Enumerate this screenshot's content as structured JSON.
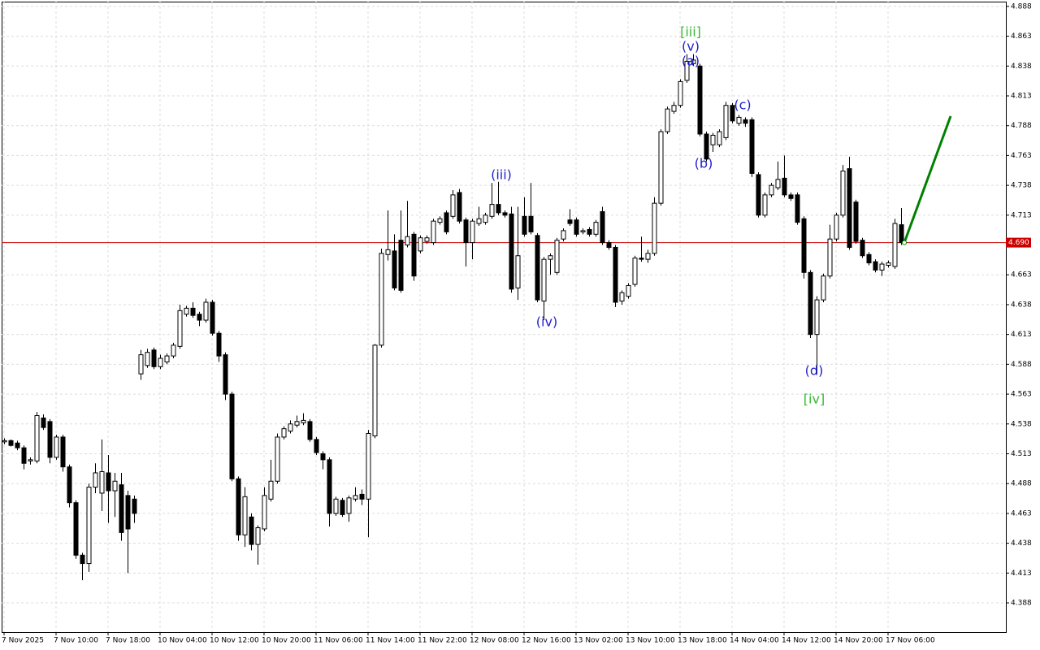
{
  "chart_data": {
    "type": "candlestick",
    "categories": [
      "7 Nov 2025",
      null,
      null,
      null,
      null,
      null,
      null,
      null,
      "7 Nov 10:00",
      null,
      null,
      null,
      null,
      null,
      null,
      null,
      "7 Nov 18:00",
      null,
      null,
      null,
      null,
      null,
      null,
      null,
      "10 Nov 04:00",
      null,
      null,
      null,
      null,
      null,
      null,
      null,
      "10 Nov 12:00",
      null,
      null,
      null,
      null,
      null,
      null,
      null,
      "10 Nov 20:00",
      null,
      null,
      null,
      null,
      null,
      null,
      null,
      "11 Nov 06:00",
      null,
      null,
      null,
      null,
      null,
      null,
      null,
      "11 Nov 14:00",
      null,
      null,
      null,
      null,
      null,
      null,
      null,
      "11 Nov 22:00",
      null,
      null,
      null,
      null,
      null,
      null,
      null,
      "12 Nov 08:00",
      null,
      null,
      null,
      null,
      null,
      null,
      null,
      "12 Nov 16:00",
      null,
      null,
      null,
      null,
      null,
      null,
      null,
      "13 Nov 02:00",
      null,
      null,
      null,
      null,
      null,
      null,
      null,
      "13 Nov 10:00",
      null,
      null,
      null,
      null,
      null,
      null,
      null,
      "13 Nov 18:00",
      null,
      null,
      null,
      null,
      null,
      null,
      null,
      "14 Nov 04:00",
      null,
      null,
      null,
      null,
      null,
      null,
      null,
      "14 Nov 12:00",
      null,
      null,
      null,
      null,
      null,
      null,
      null,
      "14 Nov 20:00",
      null,
      null,
      null,
      null,
      null,
      null,
      null,
      "17 Nov 06:00",
      null,
      null
    ],
    "open": [
      4.523,
      4.524,
      4.522,
      4.518,
      4.507,
      4.507,
      4.543,
      4.54,
      4.51,
      4.527,
      4.502,
      4.472,
      4.428,
      4.421,
      4.485,
      4.48,
      4.497,
      4.482,
      4.487,
      4.478,
      4.475,
      4.58,
      4.587,
      4.6,
      4.586,
      4.59,
      4.595,
      4.603,
      4.63,
      4.635,
      4.63,
      4.625,
      4.64,
      4.614,
      4.596,
      4.563,
      4.492,
      4.445,
      4.46,
      4.437,
      4.45,
      4.475,
      4.49,
      4.527,
      4.532,
      4.537,
      4.539,
      4.54,
      4.525,
      4.513,
      4.508,
      4.463,
      4.474,
      4.463,
      4.475,
      4.479,
      4.475,
      4.528,
      4.604,
      4.68,
      4.683,
      4.692,
      4.688,
      4.697,
      4.683,
      4.691,
      4.69,
      4.707,
      4.715,
      4.712,
      4.732,
      4.709,
      4.69,
      4.706,
      4.707,
      4.712,
      4.722,
      4.715,
      4.714,
      4.652,
      4.712,
      4.712,
      4.696,
      4.641,
      4.676,
      4.665,
      4.693,
      4.709,
      4.709,
      4.699,
      4.701,
      4.697,
      4.716,
      4.69,
      4.686,
      4.641,
      4.645,
      4.655,
      4.677,
      4.676,
      4.681,
      4.723,
      4.783,
      4.8,
      4.805,
      4.826,
      4.84,
      4.838,
      4.781,
      4.772,
      4.772,
      4.778,
      4.805,
      4.79,
      4.793,
      4.793,
      4.747,
      4.713,
      4.73,
      4.736,
      4.744,
      4.73,
      4.73,
      4.71,
      4.665,
      4.613,
      4.642,
      4.662,
      4.693,
      4.713,
      4.752,
      4.724,
      4.692,
      4.68,
      4.674,
      4.667,
      4.671,
      4.67,
      4.705
    ],
    "high": [
      4.526,
      4.525,
      4.524,
      4.52,
      4.51,
      4.548,
      4.546,
      4.542,
      4.529,
      4.529,
      4.504,
      4.474,
      4.43,
      4.488,
      4.505,
      4.525,
      4.512,
      4.497,
      4.497,
      4.482,
      4.478,
      4.6,
      4.601,
      4.602,
      4.596,
      4.597,
      4.606,
      4.638,
      4.637,
      4.64,
      4.632,
      4.643,
      4.642,
      4.616,
      4.598,
      4.565,
      4.494,
      4.485,
      4.463,
      4.453,
      4.485,
      4.508,
      4.53,
      4.536,
      4.541,
      4.545,
      4.547,
      4.542,
      4.527,
      4.515,
      4.51,
      4.477,
      4.476,
      4.478,
      4.485,
      4.483,
      4.533,
      4.605,
      4.685,
      4.717,
      4.697,
      4.717,
      4.725,
      4.699,
      4.696,
      4.696,
      4.71,
      4.712,
      4.717,
      4.734,
      4.735,
      4.711,
      4.71,
      4.72,
      4.715,
      4.74,
      4.741,
      4.717,
      4.72,
      4.72,
      4.728,
      4.74,
      4.698,
      4.678,
      4.681,
      4.694,
      4.702,
      4.718,
      4.711,
      4.702,
      4.703,
      4.709,
      4.72,
      4.692,
      4.688,
      4.65,
      4.656,
      4.679,
      4.695,
      4.684,
      4.728,
      4.785,
      4.804,
      4.808,
      4.827,
      4.848,
      4.848,
      4.84,
      4.783,
      4.782,
      4.785,
      4.808,
      4.807,
      4.797,
      4.795,
      4.795,
      4.749,
      4.732,
      4.74,
      4.758,
      4.763,
      4.732,
      4.732,
      4.712,
      4.667,
      4.645,
      4.664,
      4.705,
      4.715,
      4.755,
      4.762,
      4.726,
      4.694,
      4.682,
      4.676,
      4.674,
      4.675,
      4.71,
      4.719
    ],
    "low": [
      4.521,
      4.519,
      4.516,
      4.5,
      4.504,
      4.505,
      4.533,
      4.505,
      4.508,
      4.498,
      4.468,
      4.425,
      4.407,
      4.414,
      4.48,
      4.465,
      4.455,
      4.46,
      4.44,
      4.413,
      4.455,
      4.575,
      4.585,
      4.584,
      4.584,
      4.588,
      4.593,
      4.601,
      4.628,
      4.627,
      4.62,
      4.623,
      4.612,
      4.59,
      4.558,
      4.49,
      4.44,
      4.435,
      4.432,
      4.42,
      4.448,
      4.473,
      4.488,
      4.525,
      4.53,
      4.535,
      4.537,
      4.523,
      4.512,
      4.5,
      4.452,
      4.461,
      4.46,
      4.456,
      4.473,
      4.47,
      4.443,
      4.526,
      4.602,
      4.675,
      4.65,
      4.648,
      4.686,
      4.658,
      4.681,
      4.689,
      4.688,
      4.705,
      4.697,
      4.71,
      4.706,
      4.67,
      4.676,
      4.704,
      4.705,
      4.71,
      4.713,
      4.711,
      4.648,
      4.642,
      4.695,
      4.697,
      4.64,
      4.625,
      4.663,
      4.663,
      4.691,
      4.704,
      4.695,
      4.697,
      4.695,
      4.695,
      4.688,
      4.684,
      4.636,
      4.638,
      4.643,
      4.653,
      4.674,
      4.673,
      4.679,
      4.721,
      4.781,
      4.798,
      4.803,
      4.824,
      4.838,
      4.779,
      4.758,
      4.766,
      4.77,
      4.776,
      4.79,
      4.788,
      4.787,
      4.745,
      4.711,
      4.711,
      4.728,
      4.734,
      4.728,
      4.725,
      4.705,
      4.66,
      4.61,
      4.58,
      4.64,
      4.66,
      4.691,
      4.711,
      4.684,
      4.689,
      4.677,
      4.671,
      4.665,
      4.662,
      4.669,
      4.668,
      4.688
    ],
    "close": [
      4.524,
      4.52,
      4.518,
      4.505,
      4.508,
      4.545,
      4.535,
      4.51,
      4.527,
      4.502,
      4.472,
      4.428,
      4.421,
      4.485,
      4.497,
      4.498,
      4.482,
      4.49,
      4.447,
      4.45,
      4.463,
      4.596,
      4.598,
      4.586,
      4.593,
      4.595,
      4.604,
      4.633,
      4.635,
      4.629,
      4.625,
      4.64,
      4.614,
      4.595,
      4.563,
      4.492,
      4.445,
      4.477,
      4.437,
      4.451,
      4.478,
      4.49,
      4.527,
      4.534,
      4.538,
      4.54,
      4.541,
      4.525,
      4.514,
      4.508,
      4.463,
      4.475,
      4.462,
      4.476,
      4.478,
      4.475,
      4.53,
      4.604,
      4.681,
      4.684,
      4.652,
      4.65,
      4.695,
      4.662,
      4.694,
      4.694,
      4.708,
      4.71,
      4.699,
      4.73,
      4.708,
      4.69,
      4.708,
      4.71,
      4.713,
      4.722,
      4.715,
      4.713,
      4.651,
      4.679,
      4.697,
      4.699,
      4.642,
      4.676,
      4.679,
      4.692,
      4.7,
      4.706,
      4.697,
      4.7,
      4.697,
      4.707,
      4.69,
      4.686,
      4.64,
      4.648,
      4.654,
      4.677,
      4.676,
      4.681,
      4.723,
      4.783,
      4.802,
      4.805,
      4.825,
      4.842,
      4.843,
      4.781,
      4.76,
      4.78,
      4.783,
      4.805,
      4.792,
      4.795,
      4.79,
      4.748,
      4.713,
      4.73,
      4.738,
      4.743,
      4.73,
      4.727,
      4.707,
      4.665,
      4.613,
      4.642,
      4.662,
      4.693,
      4.713,
      4.75,
      4.686,
      4.691,
      4.679,
      4.673,
      4.667,
      4.672,
      4.673,
      4.706,
      4.69
    ],
    "ylim": [
      4.3635,
      4.892
    ],
    "yticks": [
      4.388,
      4.413,
      4.438,
      4.463,
      4.488,
      4.513,
      4.538,
      4.563,
      4.588,
      4.613,
      4.638,
      4.663,
      4.713,
      4.738,
      4.763,
      4.788,
      4.813,
      4.838,
      4.863,
      4.888
    ],
    "grid": true,
    "up_color": "#ffffff",
    "down_color": "#000000",
    "current_price": {
      "value": 4.69,
      "label": "4.690",
      "color": "#cc0000"
    },
    "forecast": {
      "color": "#008000",
      "values": [
        4.69,
        4.796
      ]
    },
    "annotations": [
      {
        "text": "[iii]",
        "color": "#33bb33"
      },
      {
        "text": "(v)",
        "color": "#2222cc"
      },
      {
        "text": "(a)",
        "color": "#2222cc"
      },
      {
        "text": "(iii)",
        "color": "#2222cc"
      },
      {
        "text": "(iv)",
        "color": "#2222cc"
      },
      {
        "text": "(b)",
        "color": "#2222cc"
      },
      {
        "text": "(c)",
        "color": "#2222cc"
      },
      {
        "text": "(d)",
        "color": "#2222cc"
      },
      {
        "text": "[iv]",
        "color": "#33bb33"
      }
    ]
  }
}
